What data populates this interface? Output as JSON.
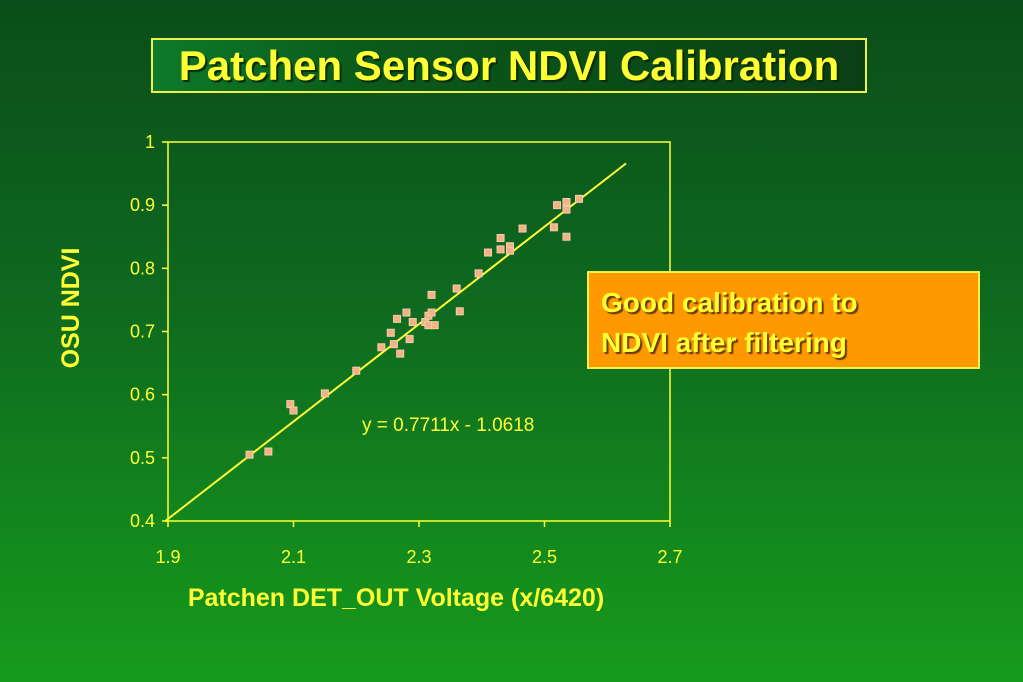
{
  "title": "Patchen Sensor NDVI Calibration",
  "callout": {
    "line1": "Good calibration to",
    "line2": "NDVI after filtering"
  },
  "colors": {
    "text": "#ffff33",
    "marker_fill": "#f4b183",
    "marker_edge": "#f2d0b0",
    "trendline": "#ffff33",
    "callout_bg": "#ff9900"
  },
  "chart_data": {
    "type": "scatter",
    "xlabel": "Patchen DET_OUT Voltage (x/6420)",
    "ylabel": "OSU NDVI",
    "xlim": [
      1.9,
      2.7
    ],
    "ylim": [
      0.4,
      1.0
    ],
    "xticks": [
      "1.9",
      "2.1",
      "2.3",
      "2.5",
      "2.7"
    ],
    "yticks": [
      "0.4",
      "0.5",
      "0.6",
      "0.7",
      "0.8",
      "0.9",
      "1"
    ],
    "grid": false,
    "points": [
      [
        2.03,
        0.505
      ],
      [
        2.06,
        0.51
      ],
      [
        2.095,
        0.585
      ],
      [
        2.1,
        0.575
      ],
      [
        2.15,
        0.602
      ],
      [
        2.2,
        0.638
      ],
      [
        2.24,
        0.675
      ],
      [
        2.255,
        0.698
      ],
      [
        2.26,
        0.68
      ],
      [
        2.265,
        0.72
      ],
      [
        2.27,
        0.665
      ],
      [
        2.28,
        0.73
      ],
      [
        2.285,
        0.688
      ],
      [
        2.29,
        0.715
      ],
      [
        2.31,
        0.715
      ],
      [
        2.315,
        0.725
      ],
      [
        2.315,
        0.71
      ],
      [
        2.32,
        0.73
      ],
      [
        2.32,
        0.758
      ],
      [
        2.325,
        0.71
      ],
      [
        2.36,
        0.768
      ],
      [
        2.365,
        0.732
      ],
      [
        2.395,
        0.792
      ],
      [
        2.41,
        0.825
      ],
      [
        2.43,
        0.83
      ],
      [
        2.43,
        0.848
      ],
      [
        2.445,
        0.835
      ],
      [
        2.445,
        0.828
      ],
      [
        2.465,
        0.863
      ],
      [
        2.515,
        0.865
      ],
      [
        2.52,
        0.9
      ],
      [
        2.535,
        0.905
      ],
      [
        2.535,
        0.85
      ],
      [
        2.535,
        0.893
      ],
      [
        2.555,
        0.91
      ]
    ],
    "trendline": {
      "equation": "y = 0.7711x - 1.0618",
      "slope": 0.7711,
      "intercept": -1.0618,
      "x_range": [
        1.895,
        2.63
      ]
    }
  }
}
